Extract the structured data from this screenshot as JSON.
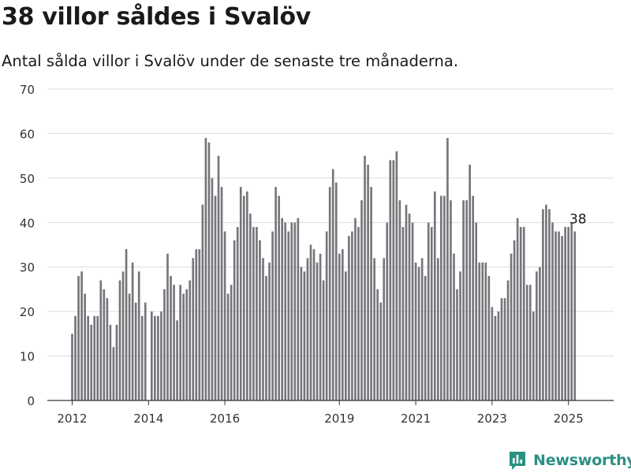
{
  "header": {
    "title": "38 villor såldes i Svalöv",
    "subtitle": "Antal sålda villor i Svalöv under de senaste tre månaderna."
  },
  "brand": {
    "name": "Newsworthy",
    "color": "#2b9084"
  },
  "colors": {
    "bar": "#76757b",
    "highlight": "#1b9a91",
    "grid": "#dcdcdc",
    "axis": "#333333"
  },
  "chart_data": {
    "type": "bar",
    "title": "38 villor såldes i Svalöv",
    "subtitle": "Antal sålda villor i Svalöv under de senaste tre månaderna.",
    "xlabel": "",
    "ylabel": "",
    "ylim": [
      0,
      70
    ],
    "yticks": [
      0,
      10,
      20,
      30,
      40,
      50,
      60,
      70
    ],
    "xticks": [
      {
        "label": "2012",
        "x": 2012
      },
      {
        "label": "2014",
        "x": 2014
      },
      {
        "label": "2016",
        "x": 2016
      },
      {
        "label": "2019",
        "x": 2019
      },
      {
        "label": "2021",
        "x": 2021
      },
      {
        "label": "2023",
        "x": 2023
      },
      {
        "label": "2025",
        "x": 2025
      }
    ],
    "grid": true,
    "x_start": 2012.0,
    "x_step": 0.08333,
    "values": [
      15,
      19,
      28,
      29,
      24,
      19,
      17,
      19,
      19,
      27,
      25,
      23,
      17,
      12,
      17,
      27,
      29,
      34,
      24,
      31,
      22,
      29,
      19,
      22,
      0,
      20,
      19,
      19,
      20,
      25,
      33,
      28,
      26,
      18,
      26,
      24,
      25,
      27,
      32,
      34,
      34,
      44,
      59,
      58,
      50,
      46,
      55,
      48,
      38,
      24,
      26,
      36,
      39,
      48,
      46,
      47,
      42,
      39,
      39,
      36,
      32,
      28,
      31,
      38,
      48,
      46,
      41,
      40,
      38,
      40,
      40,
      41,
      30,
      29,
      32,
      35,
      34,
      31,
      33,
      27,
      38,
      48,
      52,
      49,
      33,
      34,
      29,
      37,
      38,
      41,
      39,
      45,
      55,
      53,
      48,
      32,
      25,
      22,
      32,
      40,
      54,
      54,
      56,
      45,
      39,
      44,
      42,
      40,
      31,
      30,
      32,
      28,
      40,
      39,
      47,
      32,
      46,
      46,
      59,
      45,
      33,
      25,
      29,
      45,
      45,
      53,
      46,
      40,
      31,
      31,
      31,
      28,
      21,
      19,
      20,
      23,
      23,
      27,
      33,
      36,
      41,
      39,
      39,
      26,
      26,
      20,
      29,
      30,
      43,
      44,
      43,
      40,
      38,
      38,
      37,
      39,
      39,
      40,
      38
    ],
    "highlight": {
      "index": 159,
      "value": 38,
      "label": "38"
    }
  }
}
